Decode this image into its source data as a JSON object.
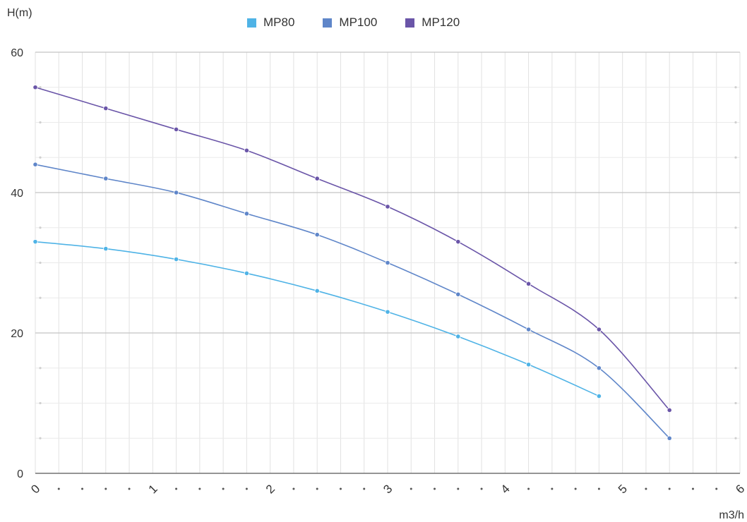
{
  "chart_data": {
    "type": "line",
    "ylabel": "H(m)",
    "xlabel": "m3/h",
    "xlim": [
      0,
      6
    ],
    "ylim": [
      0,
      60
    ],
    "y_major_ticks": [
      0,
      20,
      40,
      60
    ],
    "x_major_ticks": [
      "0",
      "1",
      "2",
      "3",
      "4",
      "5",
      "6"
    ],
    "legend_position": "top-center",
    "grid": true,
    "series": [
      {
        "name": "MP80",
        "color": "#4fb3e6",
        "x": [
          0,
          0.6,
          1.2,
          1.8,
          2.4,
          3.0,
          3.6,
          4.2,
          4.8
        ],
        "y": [
          33,
          32,
          30.5,
          28.5,
          26,
          23,
          19.5,
          15.5,
          11
        ]
      },
      {
        "name": "MP100",
        "color": "#5f86c9",
        "x": [
          0,
          0.6,
          1.2,
          1.8,
          2.4,
          3.0,
          3.6,
          4.2,
          4.8,
          5.4
        ],
        "y": [
          44,
          42,
          40,
          37,
          34,
          30,
          25.5,
          20.5,
          15,
          5
        ]
      },
      {
        "name": "MP120",
        "color": "#6a55a8",
        "x": [
          0,
          0.6,
          1.2,
          1.8,
          2.4,
          3.0,
          3.6,
          4.2,
          4.8,
          5.4
        ],
        "y": [
          55,
          52,
          49,
          46,
          42,
          38,
          33,
          27,
          20.5,
          9
        ]
      }
    ]
  }
}
